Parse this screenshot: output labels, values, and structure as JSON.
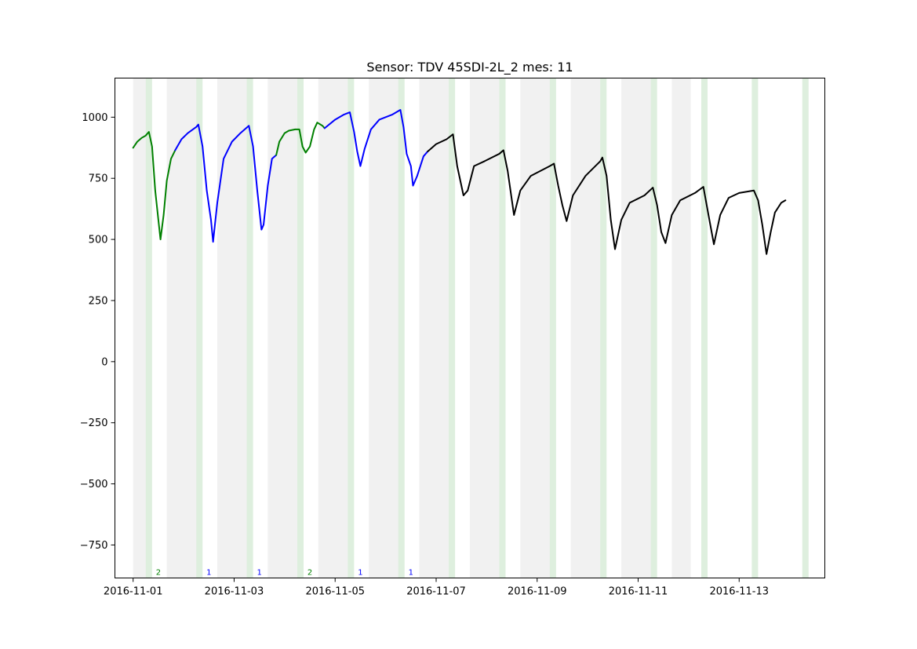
{
  "chart_data": {
    "type": "line",
    "title": "Sensor: TDV 45SDI-2L_2 mes: 11",
    "xlabel": "",
    "ylabel": "",
    "x_axis": {
      "unit": "date",
      "range": [
        "2016-10-31T15:21",
        "2016-11-14T16:43"
      ],
      "ticks": [
        "2016-11-01",
        "2016-11-03",
        "2016-11-05",
        "2016-11-07",
        "2016-11-09",
        "2016-11-11",
        "2016-11-13"
      ]
    },
    "y_axis": {
      "range": [
        -885,
        1160
      ],
      "ticks": [
        1000,
        750,
        500,
        250,
        0,
        -250,
        -500,
        -750
      ],
      "tick_labels": [
        "1000",
        "750",
        "500",
        "250",
        "0",
        "−250",
        "−500",
        "−750"
      ]
    },
    "grid": false,
    "shaded_periods": {
      "gray": [
        [
          "2016-11-01T00:00",
          "2016-11-01T06:00"
        ],
        [
          "2016-11-01T16:00",
          "2016-11-02T06:00"
        ],
        [
          "2016-11-02T16:00",
          "2016-11-03T06:00"
        ],
        [
          "2016-11-03T16:00",
          "2016-11-04T06:00"
        ],
        [
          "2016-11-04T16:00",
          "2016-11-05T06:00"
        ],
        [
          "2016-11-05T16:00",
          "2016-11-06T06:00"
        ],
        [
          "2016-11-06T16:00",
          "2016-11-07T06:00"
        ],
        [
          "2016-11-07T16:00",
          "2016-11-08T06:00"
        ],
        [
          "2016-11-08T16:00",
          "2016-11-09T06:00"
        ],
        [
          "2016-11-09T16:00",
          "2016-11-10T06:00"
        ],
        [
          "2016-11-10T16:00",
          "2016-11-11T06:00"
        ],
        [
          "2016-11-11T16:00",
          "2016-11-12T01:00"
        ]
      ],
      "green": [
        [
          "2016-11-01T06:00",
          "2016-11-01T09:00"
        ],
        [
          "2016-11-02T06:00",
          "2016-11-02T09:00"
        ],
        [
          "2016-11-03T06:00",
          "2016-11-03T09:00"
        ],
        [
          "2016-11-04T06:00",
          "2016-11-04T09:00"
        ],
        [
          "2016-11-05T06:00",
          "2016-11-05T09:00"
        ],
        [
          "2016-11-06T06:00",
          "2016-11-06T09:00"
        ],
        [
          "2016-11-07T06:00",
          "2016-11-07T09:00"
        ],
        [
          "2016-11-08T06:00",
          "2016-11-08T09:00"
        ],
        [
          "2016-11-09T06:00",
          "2016-11-09T09:00"
        ],
        [
          "2016-11-10T06:00",
          "2016-11-10T09:00"
        ],
        [
          "2016-11-11T06:00",
          "2016-11-11T09:00"
        ],
        [
          "2016-11-12T06:00",
          "2016-11-12T09:00"
        ],
        [
          "2016-11-13T06:00",
          "2016-11-13T09:00"
        ],
        [
          "2016-11-14T06:00",
          "2016-11-14T09:00"
        ]
      ]
    },
    "series": [
      {
        "color": "#008000",
        "points": [
          [
            "2016-11-01T00:00",
            875
          ],
          [
            "2016-11-01T02:00",
            900
          ],
          [
            "2016-11-01T04:00",
            915
          ],
          [
            "2016-11-01T06:00",
            925
          ],
          [
            "2016-11-01T07:30",
            940
          ],
          [
            "2016-11-01T09:00",
            880
          ],
          [
            "2016-11-01T10:30",
            700
          ],
          [
            "2016-11-01T12:00",
            580
          ],
          [
            "2016-11-01T13:00",
            500
          ],
          [
            "2016-11-01T14:30",
            600
          ],
          [
            "2016-11-01T16:00",
            740
          ],
          [
            "2016-11-01T18:00",
            830
          ],
          [
            "2016-11-01T20:00",
            865
          ]
        ]
      },
      {
        "color": "#0000ff",
        "points": [
          [
            "2016-11-01T20:00",
            865
          ],
          [
            "2016-11-01T23:00",
            910
          ],
          [
            "2016-11-02T02:00",
            935
          ],
          [
            "2016-11-02T06:00",
            960
          ],
          [
            "2016-11-02T07:00",
            970
          ],
          [
            "2016-11-02T09:00",
            880
          ],
          [
            "2016-11-02T11:00",
            700
          ],
          [
            "2016-11-02T13:00",
            580
          ],
          [
            "2016-11-02T14:00",
            490
          ],
          [
            "2016-11-02T16:00",
            650
          ],
          [
            "2016-11-02T19:00",
            830
          ],
          [
            "2016-11-02T23:00",
            900
          ],
          [
            "2016-11-03T03:00",
            935
          ],
          [
            "2016-11-03T07:00",
            965
          ],
          [
            "2016-11-03T09:00",
            880
          ],
          [
            "2016-11-03T11:00",
            700
          ],
          [
            "2016-11-03T13:00",
            540
          ],
          [
            "2016-11-03T14:00",
            560
          ],
          [
            "2016-11-03T16:00",
            720
          ],
          [
            "2016-11-03T18:00",
            830
          ],
          [
            "2016-11-03T20:00",
            845
          ]
        ]
      },
      {
        "color": "#008000",
        "points": [
          [
            "2016-11-03T20:00",
            845
          ],
          [
            "2016-11-03T21:30",
            900
          ],
          [
            "2016-11-04T00:00",
            935
          ],
          [
            "2016-11-04T02:00",
            945
          ],
          [
            "2016-11-04T05:00",
            950
          ],
          [
            "2016-11-04T07:00",
            950
          ],
          [
            "2016-11-04T08:30",
            880
          ],
          [
            "2016-11-04T10:00",
            855
          ],
          [
            "2016-11-04T12:00",
            880
          ],
          [
            "2016-11-04T14:00",
            950
          ],
          [
            "2016-11-04T15:30",
            978
          ],
          [
            "2016-11-04T18:00",
            965
          ],
          [
            "2016-11-04T19:00",
            955
          ]
        ]
      },
      {
        "color": "#0000ff",
        "points": [
          [
            "2016-11-04T19:00",
            955
          ],
          [
            "2016-11-05T00:00",
            990
          ],
          [
            "2016-11-05T04:00",
            1010
          ],
          [
            "2016-11-05T07:00",
            1020
          ],
          [
            "2016-11-05T09:00",
            940
          ],
          [
            "2016-11-05T10:30",
            860
          ],
          [
            "2016-11-05T12:00",
            800
          ],
          [
            "2016-11-05T14:00",
            870
          ],
          [
            "2016-11-05T17:00",
            950
          ],
          [
            "2016-11-05T21:00",
            990
          ],
          [
            "2016-11-06T03:00",
            1010
          ],
          [
            "2016-11-06T07:00",
            1030
          ],
          [
            "2016-11-06T08:30",
            960
          ],
          [
            "2016-11-06T10:00",
            850
          ],
          [
            "2016-11-06T12:00",
            800
          ],
          [
            "2016-11-06T13:00",
            720
          ],
          [
            "2016-11-06T15:00",
            760
          ],
          [
            "2016-11-06T18:00",
            840
          ],
          [
            "2016-11-06T20:00",
            860
          ]
        ]
      },
      {
        "color": "#000000",
        "points": [
          [
            "2016-11-06T20:00",
            860
          ],
          [
            "2016-11-07T00:00",
            890
          ],
          [
            "2016-11-07T05:00",
            910
          ],
          [
            "2016-11-07T08:00",
            930
          ],
          [
            "2016-11-07T10:00",
            800
          ],
          [
            "2016-11-07T13:00",
            680
          ],
          [
            "2016-11-07T15:00",
            700
          ],
          [
            "2016-11-07T18:00",
            800
          ],
          [
            "2016-11-07T23:00",
            820
          ],
          [
            "2016-11-08T06:00",
            850
          ],
          [
            "2016-11-08T08:00",
            865
          ],
          [
            "2016-11-08T10:00",
            780
          ],
          [
            "2016-11-08T13:00",
            600
          ],
          [
            "2016-11-08T16:00",
            700
          ],
          [
            "2016-11-08T21:00",
            760
          ],
          [
            "2016-11-09T06:00",
            800
          ],
          [
            "2016-11-09T08:00",
            810
          ],
          [
            "2016-11-09T10:00",
            720
          ],
          [
            "2016-11-09T12:00",
            640
          ],
          [
            "2016-11-09T14:00",
            575
          ],
          [
            "2016-11-09T17:00",
            680
          ],
          [
            "2016-11-09T23:00",
            760
          ],
          [
            "2016-11-10T06:00",
            820
          ],
          [
            "2016-11-10T07:00",
            835
          ],
          [
            "2016-11-10T09:00",
            760
          ],
          [
            "2016-11-10T11:00",
            580
          ],
          [
            "2016-11-10T13:00",
            460
          ],
          [
            "2016-11-10T16:00",
            580
          ],
          [
            "2016-11-10T20:00",
            650
          ],
          [
            "2016-11-11T03:00",
            680
          ],
          [
            "2016-11-11T07:00",
            712
          ],
          [
            "2016-11-11T09:00",
            640
          ],
          [
            "2016-11-11T11:00",
            530
          ],
          [
            "2016-11-11T13:00",
            485
          ],
          [
            "2016-11-11T16:00",
            600
          ],
          [
            "2016-11-11T20:00",
            660
          ],
          [
            "2016-11-12T03:00",
            690
          ],
          [
            "2016-11-12T07:00",
            715
          ],
          [
            "2016-11-12T09:00",
            620
          ],
          [
            "2016-11-12T12:00",
            480
          ],
          [
            "2016-11-12T15:00",
            600
          ],
          [
            "2016-11-12T19:00",
            670
          ],
          [
            "2016-11-13T00:00",
            690
          ],
          [
            "2016-11-13T07:00",
            700
          ],
          [
            "2016-11-13T09:00",
            660
          ],
          [
            "2016-11-13T11:00",
            560
          ],
          [
            "2016-11-13T13:00",
            440
          ],
          [
            "2016-11-13T15:00",
            530
          ],
          [
            "2016-11-13T17:00",
            610
          ],
          [
            "2016-11-13T20:00",
            650
          ],
          [
            "2016-11-13T22:00",
            660
          ]
        ]
      }
    ],
    "annotations": [
      {
        "text": "2",
        "x": "2016-11-01T12:00",
        "color": "#008000"
      },
      {
        "text": "1",
        "x": "2016-11-02T12:00",
        "color": "#0000ff"
      },
      {
        "text": "1",
        "x": "2016-11-03T12:00",
        "color": "#0000ff"
      },
      {
        "text": "2",
        "x": "2016-11-04T12:00",
        "color": "#008000"
      },
      {
        "text": "1",
        "x": "2016-11-05T12:00",
        "color": "#0000ff"
      },
      {
        "text": "1",
        "x": "2016-11-06T12:00",
        "color": "#0000ff"
      }
    ]
  }
}
